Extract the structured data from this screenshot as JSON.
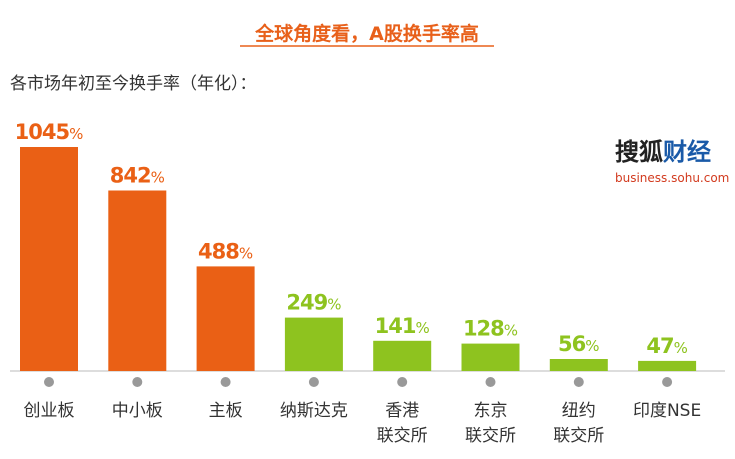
{
  "chart_data": {
    "type": "bar",
    "title": "全球角度看，A股换手率高",
    "subtitle": "各市场年初至今换手率（年化）：",
    "categories": [
      [
        "创业板"
      ],
      [
        "中小板"
      ],
      [
        "主板"
      ],
      [
        "纳斯达克"
      ],
      [
        "香港",
        "联交所"
      ],
      [
        "东京",
        "联交所"
      ],
      [
        "纽约",
        "联交所"
      ],
      [
        "印度NSE"
      ]
    ],
    "values": [
      1045,
      842,
      488,
      249,
      141,
      128,
      56,
      47
    ],
    "value_suffix": "%",
    "ylim": [
      0,
      1100
    ],
    "grid": false,
    "bar_colors": [
      "#ea6015",
      "#ea6015",
      "#ea6015",
      "#8ec31f",
      "#8ec31f",
      "#8ec31f",
      "#8ec31f",
      "#8ec31f"
    ],
    "axis_color": "#bbbbbb",
    "tick_dot_color": "#999999"
  },
  "logo": {
    "part1": "搜狐",
    "part2": "财经",
    "url": "business.sohu.com",
    "color1": "#222222",
    "color2": "#1a5aa8",
    "url_color": "#d23a1e"
  }
}
